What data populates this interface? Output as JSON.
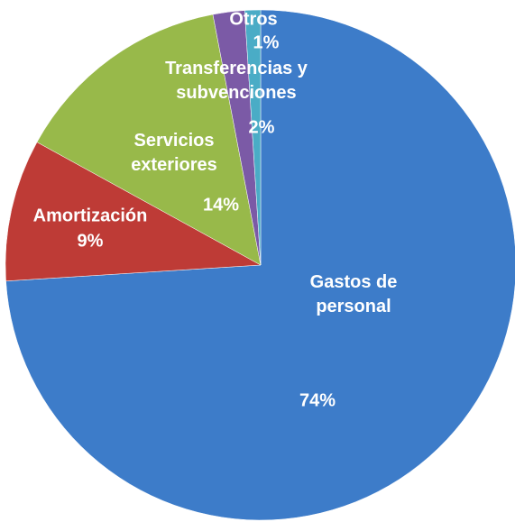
{
  "chart_data": {
    "type": "pie",
    "categories": [
      "Gastos de personal",
      "Amortización",
      "Servicios exteriores",
      "Transferencias y subvenciones",
      "Otros"
    ],
    "values": [
      74,
      9,
      14,
      2,
      1
    ],
    "value_labels": [
      "74%",
      "9%",
      "14%",
      "2%",
      "1%"
    ],
    "colors": [
      "#3d7cc9",
      "#be3b36",
      "#98b94a",
      "#7b5aa6",
      "#4aacc6"
    ]
  }
}
